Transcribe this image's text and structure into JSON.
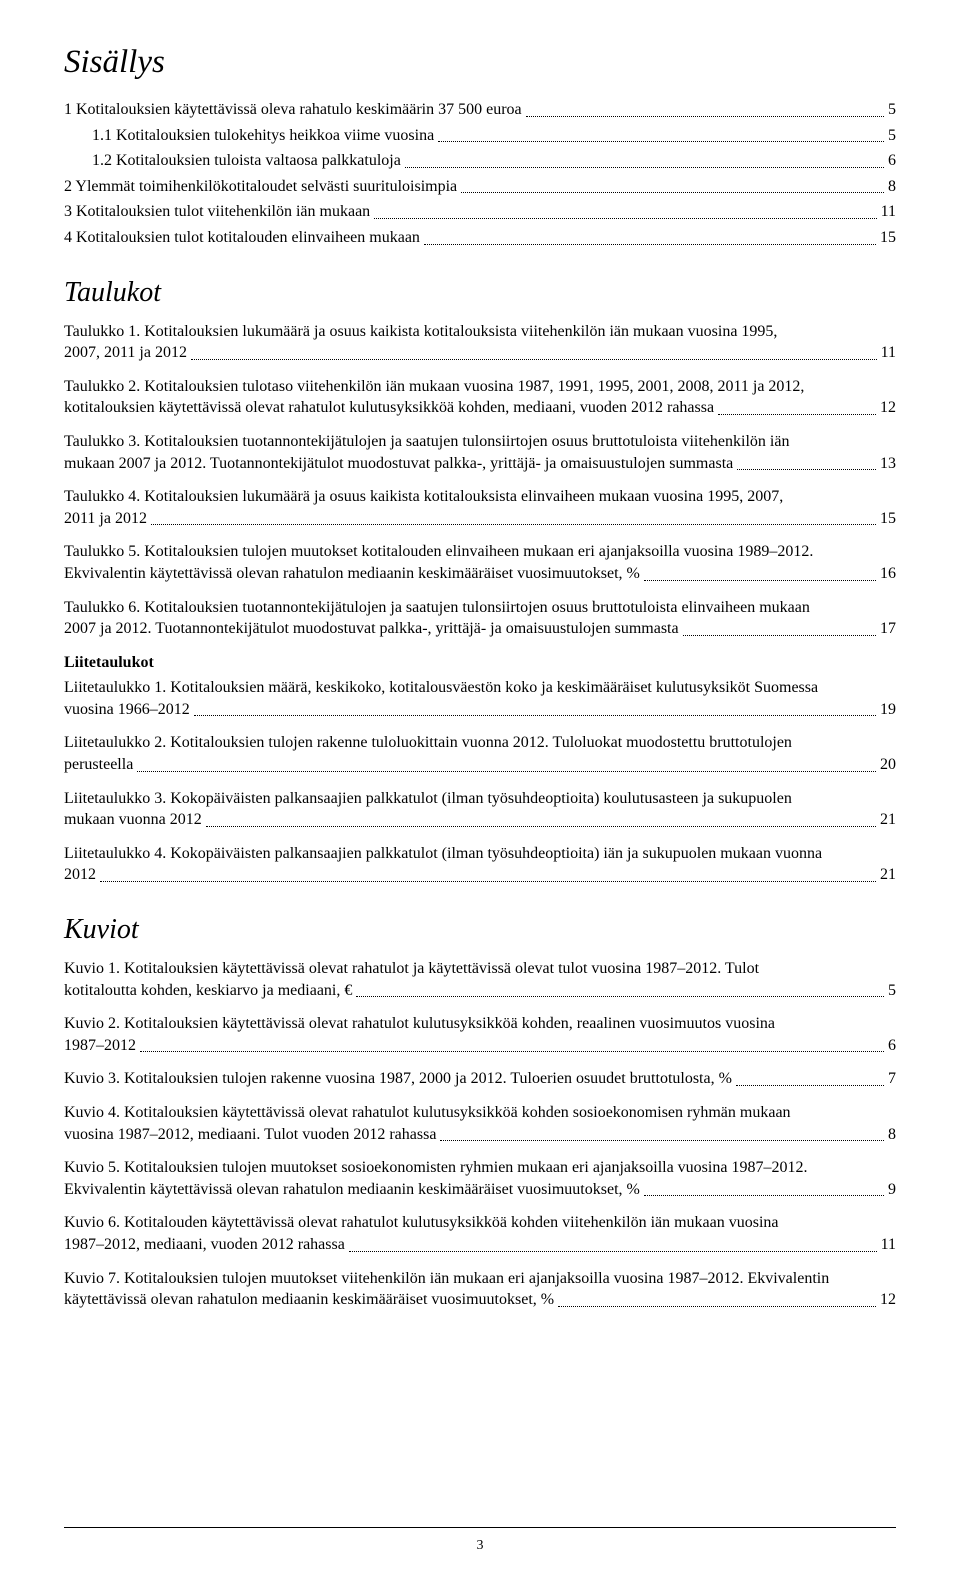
{
  "title": "Sisällys",
  "toc_main": [
    {
      "label": "1 Kotitalouksien käytettävissä oleva rahatulo keskimäärin 37 500 euroa",
      "page": "5",
      "indent": 0
    },
    {
      "label": "1.1 Kotitalouksien tulokehitys heikkoa viime vuosina",
      "page": "5",
      "indent": 1
    },
    {
      "label": "1.2 Kotitalouksien tuloista valtaosa palkkatuloja",
      "page": "6",
      "indent": 1
    },
    {
      "label": "2 Ylemmät toimihenkilökotitaloudet selvästi suurituloisimpia",
      "page": "8",
      "indent": 0
    },
    {
      "label": "3 Kotitalouksien tulot viitehenkilön iän mukaan",
      "page": "11",
      "indent": 0
    },
    {
      "label": "4 Kotitalouksien tulot kotitalouden elinvaiheen mukaan",
      "page": "15",
      "indent": 0
    }
  ],
  "taulukot_heading": "Taulukot",
  "taulukot": [
    {
      "lines": [
        "Taulukko 1. Kotitalouksien lukumäärä ja osuus kaikista kotitalouksista viitehenkilön iän mukaan vuosina 1995,",
        "2007, 2011 ja 2012"
      ],
      "page": "11"
    },
    {
      "lines": [
        "Taulukko 2. Kotitalouksien tulotaso viitehenkilön iän mukaan vuosina 1987, 1991, 1995, 2001, 2008, 2011 ja 2012,",
        "kotitalouksien käytettävissä olevat rahatulot kulutusyksikköä kohden, mediaani, vuoden 2012 rahassa"
      ],
      "page": "12"
    },
    {
      "lines": [
        "Taulukko 3. Kotitalouksien tuotannontekijätulojen ja saatujen tulonsiirtojen osuus bruttotuloista viitehenkilön iän",
        "mukaan 2007 ja 2012. Tuotannontekijätulot muodostuvat palkka-, yrittäjä- ja omaisuustulojen summasta"
      ],
      "page": "13"
    },
    {
      "lines": [
        "Taulukko 4. Kotitalouksien lukumäärä ja osuus kaikista kotitalouksista elinvaiheen mukaan vuosina 1995, 2007,",
        "2011 ja 2012"
      ],
      "page": "15"
    },
    {
      "lines": [
        "Taulukko 5. Kotitalouksien tulojen muutokset kotitalouden elinvaiheen mukaan eri ajanjaksoilla vuosina 1989–2012.",
        "Ekvivalentin käytettävissä olevan rahatulon mediaanin keskimääräiset vuosimuutokset, %"
      ],
      "page": "16"
    },
    {
      "lines": [
        "Taulukko 6. Kotitalouksien tuotannontekijätulojen ja saatujen tulonsiirtojen osuus bruttotuloista elinvaiheen mukaan",
        "2007 ja 2012. Tuotannontekijätulot muodostuvat palkka-, yrittäjä- ja omaisuustulojen summasta"
      ],
      "page": "17"
    }
  ],
  "liitetaulukot_heading": "Liitetaulukot",
  "liitetaulukot": [
    {
      "lines": [
        "Liitetaulukko 1. Kotitalouksien määrä, keskikoko, kotitalousväestön koko ja keskimääräiset kulutusyksiköt Suomessa",
        "vuosina 1966–2012"
      ],
      "page": "19"
    },
    {
      "lines": [
        "Liitetaulukko 2. Kotitalouksien tulojen rakenne tuloluokittain vuonna 2012. Tuloluokat muodostettu bruttotulojen",
        "perusteella"
      ],
      "page": "20"
    },
    {
      "lines": [
        "Liitetaulukko 3. Kokopäiväisten palkansaajien palkkatulot (ilman työsuhdeoptioita) koulutusasteen ja sukupuolen",
        "mukaan vuonna 2012"
      ],
      "page": "21"
    },
    {
      "lines": [
        "Liitetaulukko 4. Kokopäiväisten palkansaajien palkkatulot (ilman työsuhdeoptioita) iän ja sukupuolen mukaan vuonna",
        "2012"
      ],
      "page": "21"
    }
  ],
  "kuviot_heading": "Kuviot",
  "kuviot": [
    {
      "lines": [
        "Kuvio 1. Kotitalouksien käytettävissä olevat rahatulot ja käytettävissä olevat tulot vuosina 1987–2012. Tulot",
        "kotitaloutta kohden, keskiarvo ja mediaani, €"
      ],
      "page": "5"
    },
    {
      "lines": [
        "Kuvio 2. Kotitalouksien käytettävissä olevat rahatulot kulutusyksikköä kohden, reaalinen vuosimuutos vuosina",
        "1987–2012"
      ],
      "page": "6"
    },
    {
      "lines": [
        "Kuvio 3. Kotitalouksien tulojen rakenne vuosina 1987, 2000 ja 2012. Tuloerien osuudet bruttotulosta, %"
      ],
      "page": "7"
    },
    {
      "lines": [
        "Kuvio 4. Kotitalouksien käytettävissä olevat rahatulot kulutusyksikköä kohden sosioekonomisen ryhmän mukaan",
        "vuosina 1987–2012, mediaani. Tulot vuoden 2012 rahassa"
      ],
      "page": "8"
    },
    {
      "lines": [
        "Kuvio 5. Kotitalouksien tulojen muutokset sosioekonomisten ryhmien mukaan eri ajanjaksoilla vuosina 1987–2012.",
        "Ekvivalentin käytettävissä olevan rahatulon mediaanin keskimääräiset vuosimuutokset, %"
      ],
      "page": "9"
    },
    {
      "lines": [
        "Kuvio 6. Kotitalouden käytettävissä olevat rahatulot kulutusyksikköä kohden viitehenkilön iän mukaan vuosina",
        "1987–2012, mediaani, vuoden 2012 rahassa"
      ],
      "page": "11"
    },
    {
      "lines": [
        "Kuvio 7. Kotitalouksien tulojen muutokset viitehenkilön iän mukaan eri ajanjaksoilla vuosina 1987–2012. Ekvivalentin",
        "käytettävissä olevan rahatulon mediaanin keskimääräiset vuosimuutokset, %"
      ],
      "page": "12"
    }
  ],
  "page_number": "3"
}
